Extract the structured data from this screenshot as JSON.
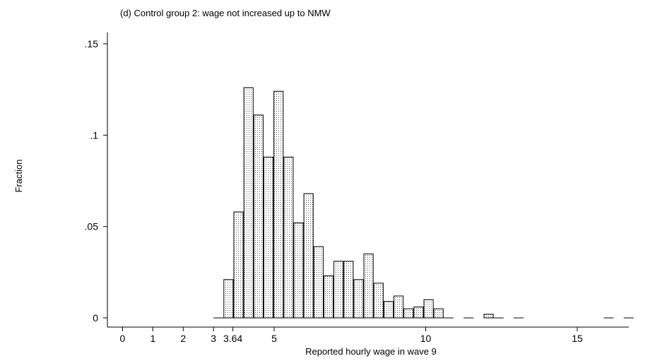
{
  "chart_data": {
    "type": "bar",
    "title": "(d) Control group 2: wage not increased up to NMW",
    "xlabel": "Reported hourly wage in wave 9",
    "ylabel": "Fraction",
    "xlim": [
      -0.5,
      16.7
    ],
    "ylim": [
      0,
      0.155
    ],
    "x_ticks": [
      {
        "value": 0,
        "label": "0"
      },
      {
        "value": 1,
        "label": "1"
      },
      {
        "value": 2,
        "label": "2"
      },
      {
        "value": 3,
        "label": "3"
      },
      {
        "value": 3.64,
        "label": "3.64"
      },
      {
        "value": 5,
        "label": "5"
      },
      {
        "value": 10,
        "label": "10"
      },
      {
        "value": 15,
        "label": "15"
      }
    ],
    "y_ticks": [
      {
        "value": 0,
        "label": "0"
      },
      {
        "value": 0.05,
        "label": ".05"
      },
      {
        "value": 0.1,
        "label": ".1"
      },
      {
        "value": 0.15,
        "label": ".15"
      }
    ],
    "bin_width": 0.33,
    "bins": [
      {
        "x": 3.0,
        "value": 0.0
      },
      {
        "x": 3.33,
        "value": 0.021
      },
      {
        "x": 3.66,
        "value": 0.058
      },
      {
        "x": 3.99,
        "value": 0.126
      },
      {
        "x": 4.32,
        "value": 0.111
      },
      {
        "x": 4.65,
        "value": 0.088
      },
      {
        "x": 4.98,
        "value": 0.124
      },
      {
        "x": 5.31,
        "value": 0.088
      },
      {
        "x": 5.64,
        "value": 0.052
      },
      {
        "x": 5.97,
        "value": 0.068
      },
      {
        "x": 6.3,
        "value": 0.039
      },
      {
        "x": 6.63,
        "value": 0.023
      },
      {
        "x": 6.96,
        "value": 0.031
      },
      {
        "x": 7.29,
        "value": 0.031
      },
      {
        "x": 7.62,
        "value": 0.021
      },
      {
        "x": 7.95,
        "value": 0.035
      },
      {
        "x": 8.28,
        "value": 0.019
      },
      {
        "x": 8.61,
        "value": 0.009
      },
      {
        "x": 8.94,
        "value": 0.012
      },
      {
        "x": 9.27,
        "value": 0.005
      },
      {
        "x": 9.6,
        "value": 0.006
      },
      {
        "x": 9.93,
        "value": 0.01
      },
      {
        "x": 10.26,
        "value": 0.005
      },
      {
        "x": 10.59,
        "value": 0.0
      },
      {
        "x": 11.25,
        "value": 0.0
      },
      {
        "x": 11.91,
        "value": 0.002
      },
      {
        "x": 12.24,
        "value": 0.0
      },
      {
        "x": 12.9,
        "value": 0.0
      },
      {
        "x": 15.87,
        "value": 0.0
      },
      {
        "x": 16.53,
        "value": 0.0
      }
    ],
    "grid": false,
    "legend": "none"
  }
}
